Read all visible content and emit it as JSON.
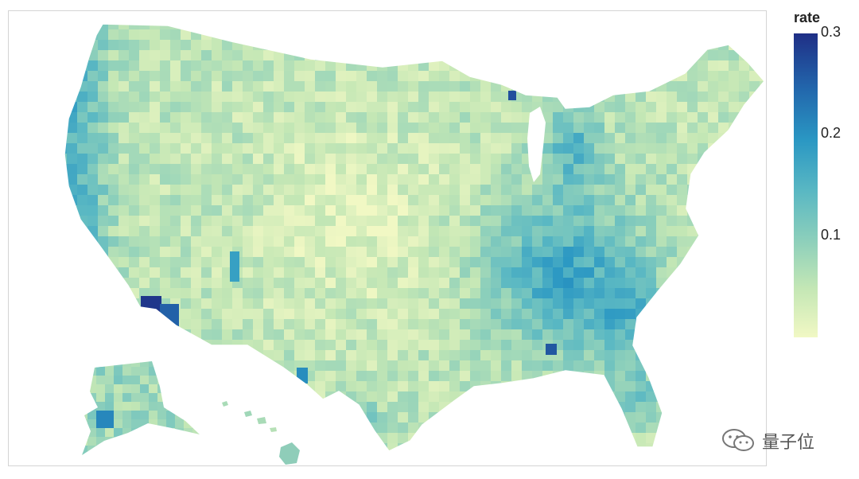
{
  "legend": {
    "title": "rate",
    "ticks": [
      {
        "label": "0.3",
        "value": 0.3
      },
      {
        "label": "0.2",
        "value": 0.2
      },
      {
        "label": "0.1",
        "value": 0.1
      }
    ],
    "min": 0.0,
    "max": 0.3,
    "colors": [
      "#f1f8c4",
      "#c4e7b5",
      "#8ccfbb",
      "#5ab8c3",
      "#2a97c3",
      "#2266ac",
      "#1f2f86"
    ]
  },
  "map": {
    "subject": "county-level choropleth of the United States",
    "background_color": "#ffffff",
    "border_color": "#d4d4d4"
  },
  "watermark": {
    "text": "量子位",
    "icon": "wechat-icon"
  }
}
